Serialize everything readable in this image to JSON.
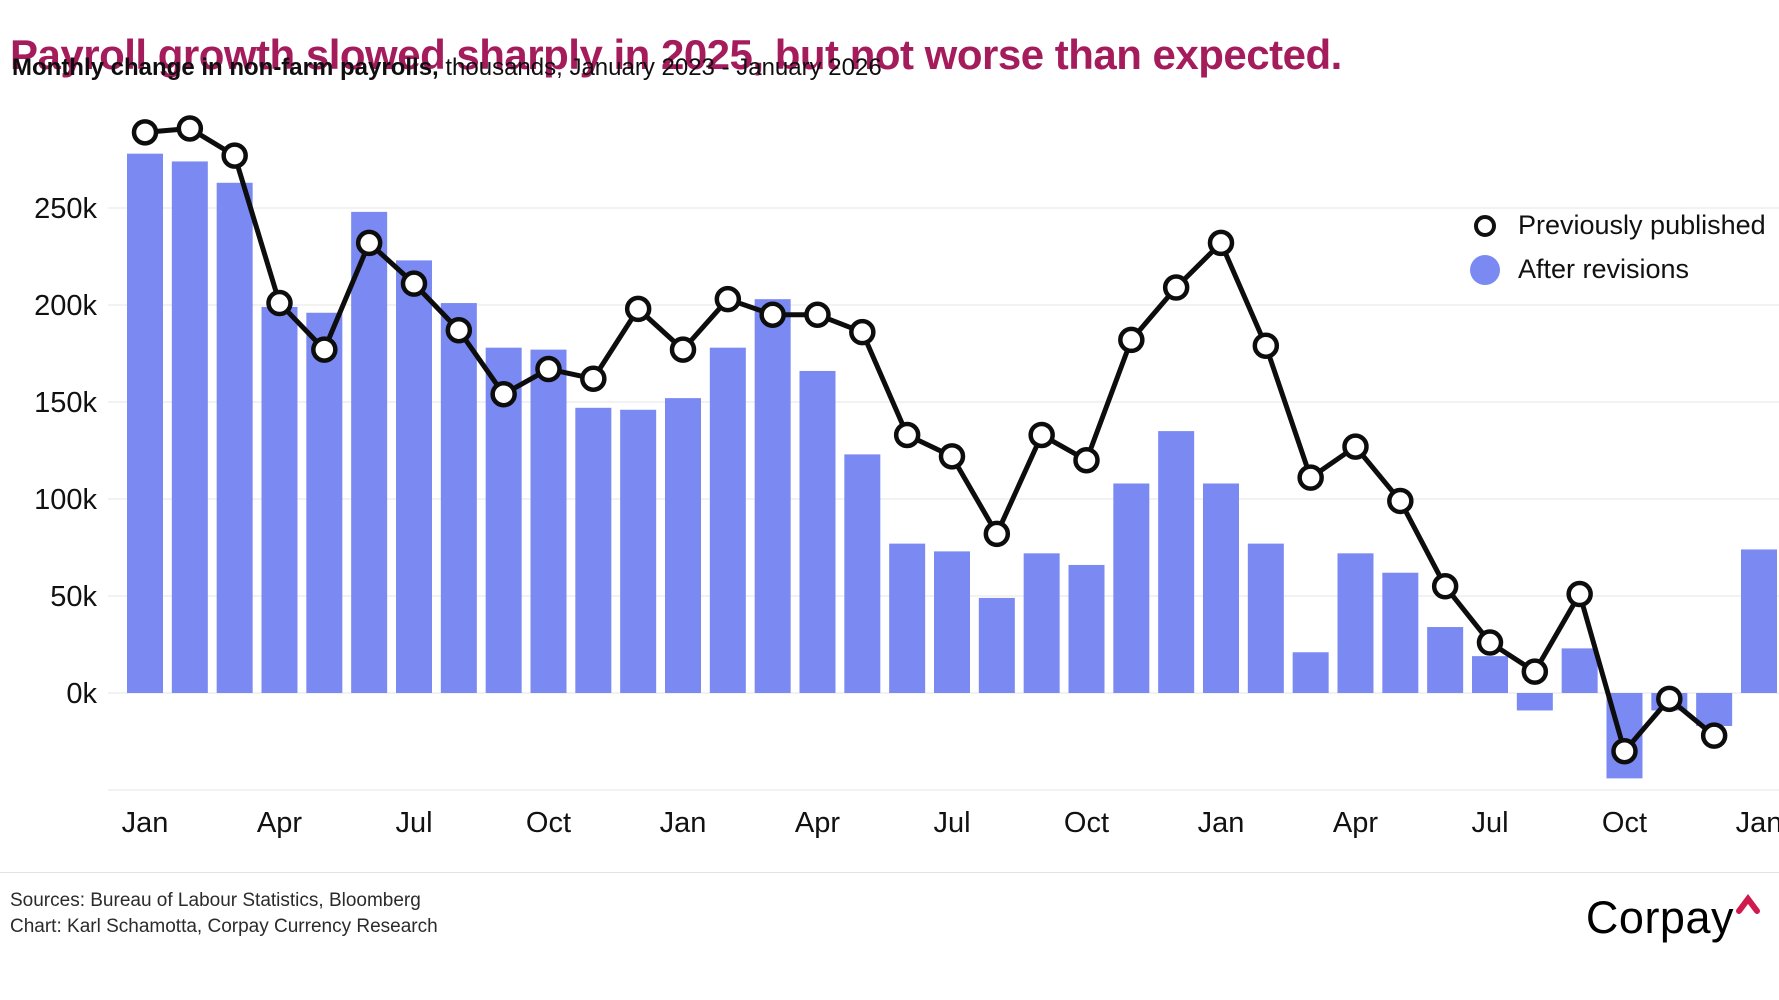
{
  "header": {
    "title": "Payroll growth slowed sharply in 2025, but not worse than expected.",
    "subtitle_bold": "Monthly change in non-farm payrolls,",
    "subtitle_rest": " thousands, January 2023 - January 2026"
  },
  "legend": {
    "previously_published": "Previously published",
    "after_revisions": "After revisions"
  },
  "footer": {
    "sources": "Sources: Bureau of Labour Statistics, Bloomberg",
    "credit": "Chart: Karl Schamotta, Corpay Currency Research",
    "logo_text": "Corpay"
  },
  "colors": {
    "title": "#a51c5c",
    "bar": "#7b8af2",
    "line": "#0d0d0d",
    "marker_fill": "#ffffff",
    "gridline": "#eeeeee",
    "axis_text": "#111111",
    "logo_caret": "#d01a4e"
  },
  "chart_data": {
    "type": "bar",
    "title": "Payroll growth slowed sharply in 2025, but not worse than expected.",
    "subtitle": "Monthly change in non-farm payrolls, thousands, January 2023 - January 2026",
    "unit": "thousands",
    "ylim": [
      -75,
      300
    ],
    "grid": "horizontal",
    "legend_position": "top-right",
    "y_tick_values": [
      0,
      50,
      100,
      150,
      200,
      250
    ],
    "y_tick_suffix": "k",
    "gridline_values": [
      -50,
      0,
      50,
      100,
      150,
      200,
      250
    ],
    "x_tick_month_indices": [
      0,
      3,
      6,
      9,
      12,
      15,
      18,
      21,
      24,
      27,
      30,
      33,
      36
    ],
    "x_tick_labels": [
      "Jan",
      "Apr",
      "Jul",
      "Oct",
      "Jan",
      "Apr",
      "Jul",
      "Oct",
      "Jan",
      "Apr",
      "Jul",
      "Oct",
      "Jan"
    ],
    "months": [
      "Jan 2023",
      "Feb 2023",
      "Mar 2023",
      "Apr 2023",
      "May 2023",
      "Jun 2023",
      "Jul 2023",
      "Aug 2023",
      "Sep 2023",
      "Oct 2023",
      "Nov 2023",
      "Dec 2023",
      "Jan 2024",
      "Feb 2024",
      "Mar 2024",
      "Apr 2024",
      "May 2024",
      "Jun 2024",
      "Jul 2024",
      "Aug 2024",
      "Sep 2024",
      "Oct 2024",
      "Nov 2024",
      "Dec 2024",
      "Jan 2025",
      "Feb 2025",
      "Mar 2025",
      "Apr 2025",
      "May 2025",
      "Jun 2025",
      "Jul 2025",
      "Aug 2025",
      "Sep 2025",
      "Oct 2025",
      "Nov 2025",
      "Dec 2025",
      "Jan 2026"
    ],
    "series": [
      {
        "name": "After revisions",
        "type": "bar",
        "values": [
          278,
          274,
          263,
          199,
          196,
          248,
          223,
          201,
          178,
          177,
          147,
          146,
          152,
          178,
          203,
          166,
          123,
          77,
          73,
          49,
          72,
          66,
          108,
          135,
          108,
          77,
          21,
          72,
          62,
          34,
          19,
          -9,
          23,
          -44,
          -9,
          -17,
          74
        ]
      },
      {
        "name": "Previously published",
        "type": "line",
        "values": [
          289,
          291,
          277,
          201,
          177,
          232,
          211,
          187,
          154,
          167,
          162,
          198,
          177,
          203,
          195,
          195,
          186,
          133,
          122,
          82,
          133,
          120,
          182,
          209,
          232,
          179,
          111,
          127,
          99,
          55,
          26,
          11,
          51,
          -30,
          -3,
          -22
        ]
      }
    ]
  }
}
